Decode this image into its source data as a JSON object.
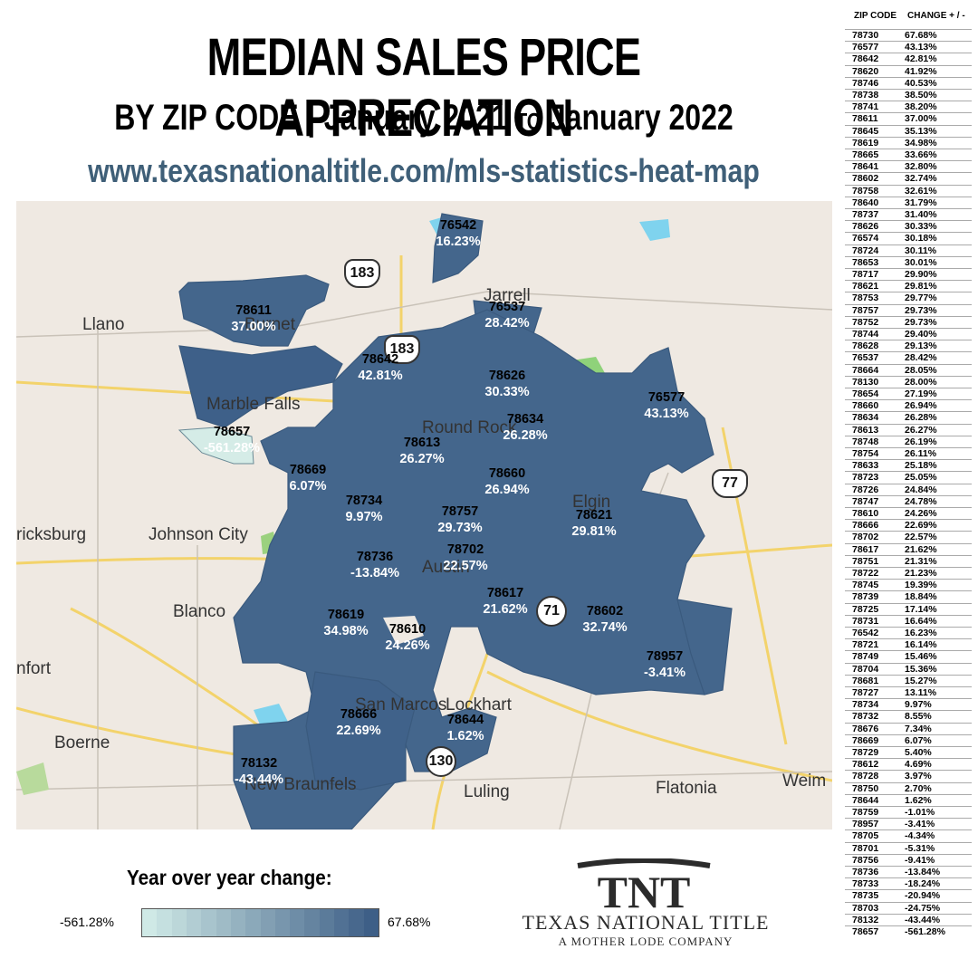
{
  "header": {
    "title": "MEDIAN SALES PRICE APPRECIATION",
    "subtitle_by": "BY ZIP CODE",
    "subtitle_sep": "|",
    "subtitle_start": "January 2021",
    "subtitle_to": "TO",
    "subtitle_end": "January 2022",
    "url": "www.texasnationaltitle.com/mls-statistics-heat-map"
  },
  "map": {
    "towns": [
      {
        "name": "Llano"
      },
      {
        "name": "Burnet"
      },
      {
        "name": "Marble Falls"
      },
      {
        "name": "ricksburg"
      },
      {
        "name": "Johnson City"
      },
      {
        "name": "Blanco"
      },
      {
        "name": "nfort"
      },
      {
        "name": "Boerne"
      },
      {
        "name": "Jarrell"
      },
      {
        "name": "Round Rock"
      },
      {
        "name": "Elgin"
      },
      {
        "name": "Austin"
      },
      {
        "name": "San Marcos"
      },
      {
        "name": "Lockhart"
      },
      {
        "name": "New Braunfels"
      },
      {
        "name": "Luling"
      },
      {
        "name": "Flatonia"
      },
      {
        "name": "Weim"
      }
    ],
    "highway_shields": [
      {
        "label": "183"
      },
      {
        "label": "183"
      },
      {
        "label": "77"
      },
      {
        "label": "71"
      },
      {
        "label": "130"
      }
    ],
    "zip_labels": [
      {
        "zip": "76542",
        "pct": "16.23%"
      },
      {
        "zip": "78611",
        "pct": "37.00%"
      },
      {
        "zip": "76537",
        "pct": "28.42%"
      },
      {
        "zip": "78642",
        "pct": "42.81%"
      },
      {
        "zip": "78626",
        "pct": "30.33%"
      },
      {
        "zip": "76577",
        "pct": "43.13%"
      },
      {
        "zip": "78657",
        "pct": "-561.28%"
      },
      {
        "zip": "78634",
        "pct": "26.28%"
      },
      {
        "zip": "78613",
        "pct": "26.27%"
      },
      {
        "zip": "78669",
        "pct": "6.07%"
      },
      {
        "zip": "78660",
        "pct": "26.94%"
      },
      {
        "zip": "78734",
        "pct": "9.97%"
      },
      {
        "zip": "78757",
        "pct": "29.73%"
      },
      {
        "zip": "78621",
        "pct": "29.81%"
      },
      {
        "zip": "78736",
        "pct": "-13.84%"
      },
      {
        "zip": "78702",
        "pct": "22.57%"
      },
      {
        "zip": "78617",
        "pct": "21.62%"
      },
      {
        "zip": "78619",
        "pct": "34.98%"
      },
      {
        "zip": "78610",
        "pct": "24.26%"
      },
      {
        "zip": "78602",
        "pct": "32.74%"
      },
      {
        "zip": "78957",
        "pct": "-3.41%"
      },
      {
        "zip": "78666",
        "pct": "22.69%"
      },
      {
        "zip": "78644",
        "pct": "1.62%"
      },
      {
        "zip": "78132",
        "pct": "-43.44%"
      }
    ]
  },
  "table": {
    "header_zip": "ZIP CODE",
    "header_change": "CHANGE + / -",
    "rows": [
      [
        "78730",
        "67.68%"
      ],
      [
        "76577",
        "43.13%"
      ],
      [
        "78642",
        "42.81%"
      ],
      [
        "78620",
        "41.92%"
      ],
      [
        "78746",
        "40.53%"
      ],
      [
        "78738",
        "38.50%"
      ],
      [
        "78741",
        "38.20%"
      ],
      [
        "78611",
        "37.00%"
      ],
      [
        "78645",
        "35.13%"
      ],
      [
        "78619",
        "34.98%"
      ],
      [
        "78665",
        "33.66%"
      ],
      [
        "78641",
        "32.80%"
      ],
      [
        "78602",
        "32.74%"
      ],
      [
        "78758",
        "32.61%"
      ],
      [
        "78640",
        "31.79%"
      ],
      [
        "78737",
        "31.40%"
      ],
      [
        "78626",
        "30.33%"
      ],
      [
        "76574",
        "30.18%"
      ],
      [
        "78724",
        "30.11%"
      ],
      [
        "78653",
        "30.01%"
      ],
      [
        "78717",
        "29.90%"
      ],
      [
        "78621",
        "29.81%"
      ],
      [
        "78753",
        "29.77%"
      ],
      [
        "78757",
        "29.73%"
      ],
      [
        "78752",
        "29.73%"
      ],
      [
        "78744",
        "29.40%"
      ],
      [
        "78628",
        "29.13%"
      ],
      [
        "76537",
        "28.42%"
      ],
      [
        "78664",
        "28.05%"
      ],
      [
        "78130",
        "28.00%"
      ],
      [
        "78654",
        "27.19%"
      ],
      [
        "78660",
        "26.94%"
      ],
      [
        "78634",
        "26.28%"
      ],
      [
        "78613",
        "26.27%"
      ],
      [
        "78748",
        "26.19%"
      ],
      [
        "78754",
        "26.11%"
      ],
      [
        "78633",
        "25.18%"
      ],
      [
        "78723",
        "25.05%"
      ],
      [
        "78726",
        "24.84%"
      ],
      [
        "78747",
        "24.78%"
      ],
      [
        "78610",
        "24.26%"
      ],
      [
        "78666",
        "22.69%"
      ],
      [
        "78702",
        "22.57%"
      ],
      [
        "78617",
        "21.62%"
      ],
      [
        "78751",
        "21.31%"
      ],
      [
        "78722",
        "21.23%"
      ],
      [
        "78745",
        "19.39%"
      ],
      [
        "78739",
        "18.84%"
      ],
      [
        "78725",
        "17.14%"
      ],
      [
        "78731",
        "16.64%"
      ],
      [
        "76542",
        "16.23%"
      ],
      [
        "78721",
        "16.14%"
      ],
      [
        "78749",
        "15.46%"
      ],
      [
        "78704",
        "15.36%"
      ],
      [
        "78681",
        "15.27%"
      ],
      [
        "78727",
        "13.11%"
      ],
      [
        "78734",
        "9.97%"
      ],
      [
        "78732",
        "8.55%"
      ],
      [
        "78676",
        "7.34%"
      ],
      [
        "78669",
        "6.07%"
      ],
      [
        "78729",
        "5.40%"
      ],
      [
        "78612",
        "4.69%"
      ],
      [
        "78728",
        "3.97%"
      ],
      [
        "78750",
        "2.70%"
      ],
      [
        "78644",
        "1.62%"
      ],
      [
        "78759",
        "-1.01%"
      ],
      [
        "78957",
        "-3.41%"
      ],
      [
        "78705",
        "-4.34%"
      ],
      [
        "78701",
        "-5.31%"
      ],
      [
        "78756",
        "-9.41%"
      ],
      [
        "78736",
        "-13.84%"
      ],
      [
        "78733",
        "-18.24%"
      ],
      [
        "78735",
        "-20.94%"
      ],
      [
        "78703",
        "-24.75%"
      ],
      [
        "78132",
        "-43.44%"
      ],
      [
        "78657",
        "-561.28%"
      ]
    ]
  },
  "legend": {
    "title": "Year over year change:",
    "min_label": "-561.28%",
    "max_label": "67.68%",
    "min_color": "#cfe9e6",
    "max_color": "#3e5f87"
  },
  "logo": {
    "mark": "TNT",
    "name": "TEXAS NATIONAL TITLE",
    "tagline": "A MOTHER LODE COMPANY"
  },
  "colors": {
    "region": "#44668c",
    "region_light": "#d5ece7",
    "url": "#3f5f78"
  }
}
